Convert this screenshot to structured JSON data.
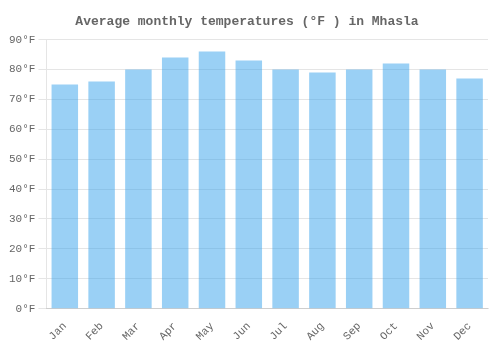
{
  "chart_data": {
    "type": "bar",
    "title": "Average monthly temperatures (°F ) in Mhasla",
    "categories": [
      "Jan",
      "Feb",
      "Mar",
      "Apr",
      "May",
      "Jun",
      "Jul",
      "Aug",
      "Sep",
      "Oct",
      "Nov",
      "Dec"
    ],
    "values": [
      75,
      76,
      80,
      84,
      86,
      83,
      80,
      79,
      80,
      82,
      80,
      77
    ],
    "ylim": [
      0,
      90
    ],
    "yticks": [
      {
        "value": 0,
        "label": "0°F"
      },
      {
        "value": 10,
        "label": "10°F"
      },
      {
        "value": 20,
        "label": "20°F"
      },
      {
        "value": 30,
        "label": "30°F"
      },
      {
        "value": 40,
        "label": "40°F"
      },
      {
        "value": 50,
        "label": "50°F"
      },
      {
        "value": 60,
        "label": "60°F"
      },
      {
        "value": 70,
        "label": "70°F"
      },
      {
        "value": 80,
        "label": "80°F"
      },
      {
        "value": 90,
        "label": "90°F"
      }
    ],
    "grid": true
  }
}
